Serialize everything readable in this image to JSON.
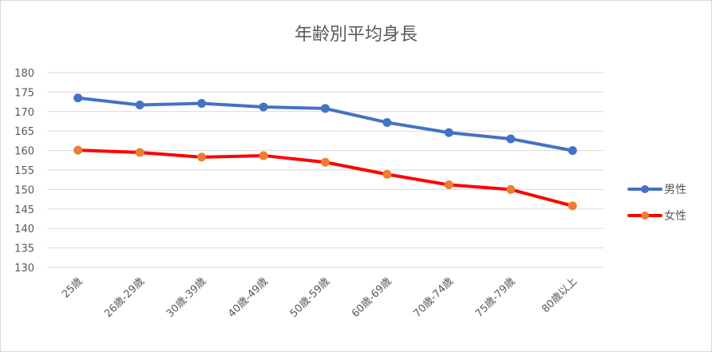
{
  "chart_data": {
    "type": "line",
    "title": "年齢別平均身長",
    "xlabel": "",
    "ylabel": "",
    "categories": [
      "25歳",
      "26歳-29歳",
      "30歳-39歳",
      "40歳-49歳",
      "50歳-59歳",
      "60歳-69歳",
      "70歳-74歳",
      "75歳-79歳",
      "80歳以上"
    ],
    "ylim": [
      130,
      180
    ],
    "yticks": [
      "180",
      "175",
      "170",
      "165",
      "160",
      "155",
      "150",
      "145",
      "140",
      "135",
      "130"
    ],
    "grid": true,
    "legend_position": "right",
    "series": [
      {
        "name": "男性",
        "line_color": "#4472C4",
        "marker_color": "#4472C4",
        "values": [
          173.5,
          171.7,
          172.1,
          171.2,
          170.8,
          167.2,
          164.6,
          163.0,
          160.0
        ]
      },
      {
        "name": "女性",
        "line_color": "#FF0000",
        "marker_color": "#ED7D31",
        "values": [
          160.1,
          159.5,
          158.3,
          158.7,
          157.0,
          153.9,
          151.2,
          150.0,
          145.8
        ]
      }
    ]
  }
}
